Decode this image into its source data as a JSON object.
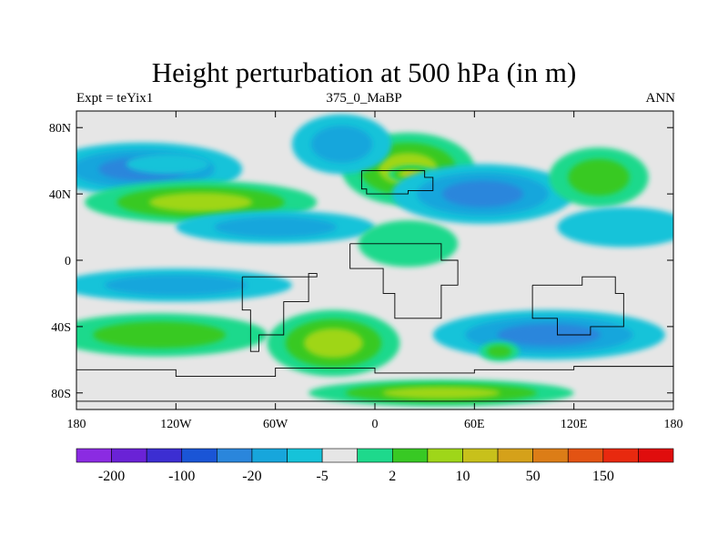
{
  "chart_data": {
    "type": "heatmap",
    "title": "Height perturbation at 500 hPa (in m)",
    "subtitle_left": "Expt = teYix1",
    "subtitle_center": "375_0_MaBP",
    "subtitle_right": "ANN",
    "xlim": [
      -180,
      180
    ],
    "ylim": [
      -90,
      90
    ],
    "x_ticks": [
      {
        "value": -180,
        "label": "180"
      },
      {
        "value": -120,
        "label": "120W"
      },
      {
        "value": -60,
        "label": "60W"
      },
      {
        "value": 0,
        "label": "0"
      },
      {
        "value": 60,
        "label": "60E"
      },
      {
        "value": 120,
        "label": "120E"
      },
      {
        "value": 180,
        "label": "180"
      }
    ],
    "y_ticks": [
      {
        "value": 80,
        "label": "80N"
      },
      {
        "value": 40,
        "label": "40N"
      },
      {
        "value": 0,
        "label": "0"
      },
      {
        "value": -40,
        "label": "40S"
      },
      {
        "value": -80,
        "label": "80S"
      }
    ],
    "colorbar": {
      "colors": [
        "#8b2be2",
        "#6a22d6",
        "#3c2ed2",
        "#1a55d6",
        "#2a86dc",
        "#17a6dc",
        "#16c3d9",
        "#e6e6e6",
        "#1ed98c",
        "#38c924",
        "#9fd619",
        "#c8c11b",
        "#d5a11a",
        "#dc7d17",
        "#e35313",
        "#e8290f",
        "#e00d0d"
      ],
      "labels": [
        {
          "boundary": 1,
          "text": "-200"
        },
        {
          "boundary": 3,
          "text": "-100"
        },
        {
          "boundary": 5,
          "text": "-20"
        },
        {
          "boundary": 7,
          "text": "-5"
        },
        {
          "boundary": 9,
          "text": "2"
        },
        {
          "boundary": 11,
          "text": "10"
        },
        {
          "boundary": 13,
          "text": "50"
        },
        {
          "boundary": 15,
          "text": "150"
        }
      ]
    },
    "field_blobs": [
      {
        "lon": -140,
        "lat": 55,
        "rlon": 60,
        "rlat": 16,
        "level": -3
      },
      {
        "lon": -125,
        "lat": 58,
        "rlon": 25,
        "rlat": 6,
        "level": -1
      },
      {
        "lon": -105,
        "lat": 35,
        "rlon": 70,
        "rlat": 13,
        "level": 3
      },
      {
        "lon": -60,
        "lat": 20,
        "rlon": 60,
        "rlat": 10,
        "level": -2
      },
      {
        "lon": 20,
        "lat": 55,
        "rlon": 40,
        "rlat": 22,
        "level": 3
      },
      {
        "lon": 22,
        "lat": 52,
        "rlon": 14,
        "rlat": 5,
        "level": 4
      },
      {
        "lon": -20,
        "lat": 70,
        "rlon": 30,
        "rlat": 18,
        "level": -2
      },
      {
        "lon": 65,
        "lat": 40,
        "rlon": 55,
        "rlat": 18,
        "level": -3
      },
      {
        "lon": 135,
        "lat": 50,
        "rlon": 30,
        "rlat": 18,
        "level": 2
      },
      {
        "lon": 150,
        "lat": 20,
        "rlon": 40,
        "rlat": 12,
        "level": -1
      },
      {
        "lon": 105,
        "lat": -45,
        "rlon": 70,
        "rlat": 15,
        "level": -3
      },
      {
        "lon": 75,
        "lat": -55,
        "rlon": 12,
        "rlat": 6,
        "level": 2
      },
      {
        "lon": -130,
        "lat": -45,
        "rlon": 65,
        "rlat": 13,
        "level": 2
      },
      {
        "lon": -25,
        "lat": -50,
        "rlon": 40,
        "rlat": 20,
        "level": 3
      },
      {
        "lon": 40,
        "lat": -80,
        "rlon": 80,
        "rlat": 8,
        "level": 3
      },
      {
        "lon": -120,
        "lat": -15,
        "rlon": 70,
        "rlat": 10,
        "level": -2
      },
      {
        "lon": 20,
        "lat": 10,
        "rlon": 30,
        "rlat": 14,
        "level": 1
      }
    ],
    "land_outlines": [
      [
        [
          -8,
          54
        ],
        [
          15,
          54
        ],
        [
          30,
          50
        ],
        [
          35,
          42
        ],
        [
          20,
          40
        ],
        [
          -5,
          43
        ],
        [
          -8,
          54
        ]
      ],
      [
        [
          -15,
          10
        ],
        [
          15,
          10
        ],
        [
          40,
          0
        ],
        [
          50,
          -15
        ],
        [
          40,
          -35
        ],
        [
          25,
          -35
        ],
        [
          12,
          -20
        ],
        [
          5,
          -5
        ],
        [
          -15,
          10
        ]
      ],
      [
        [
          -80,
          -10
        ],
        [
          -35,
          -8
        ],
        [
          -40,
          -25
        ],
        [
          -55,
          -45
        ],
        [
          -70,
          -55
        ],
        [
          -75,
          -30
        ],
        [
          -80,
          -10
        ]
      ],
      [
        [
          95,
          -15
        ],
        [
          125,
          -10
        ],
        [
          145,
          -20
        ],
        [
          150,
          -40
        ],
        [
          130,
          -45
        ],
        [
          110,
          -35
        ],
        [
          95,
          -15
        ]
      ],
      [
        [
          -180,
          -66
        ],
        [
          -120,
          -70
        ],
        [
          -60,
          -65
        ],
        [
          0,
          -68
        ],
        [
          60,
          -66
        ],
        [
          120,
          -64
        ],
        [
          180,
          -66
        ],
        [
          180,
          -85
        ],
        [
          -180,
          -85
        ],
        [
          -180,
          -66
        ]
      ]
    ]
  }
}
